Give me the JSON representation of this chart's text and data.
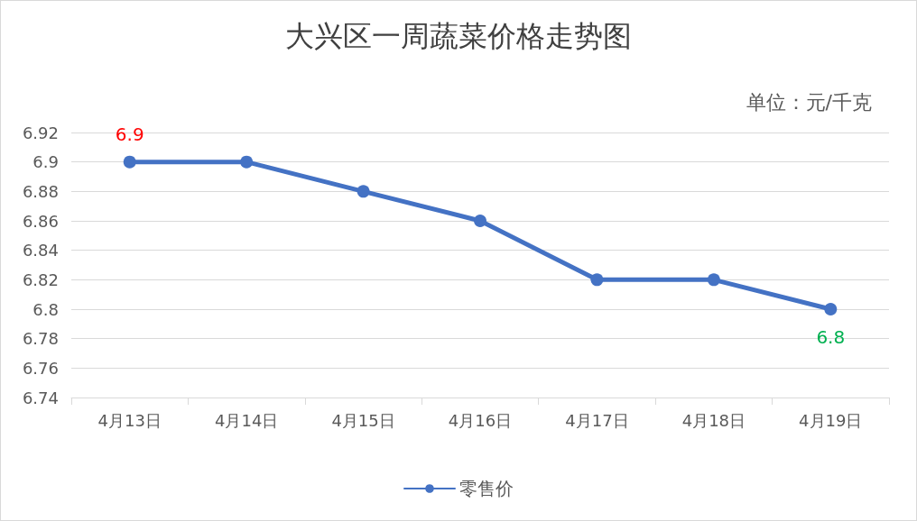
{
  "chart_data": {
    "type": "line",
    "title": "大兴区一周蔬菜价格走势图",
    "subtitle": "单位：元/千克",
    "categories": [
      "4月13日",
      "4月14日",
      "4月15日",
      "4月16日",
      "4月17日",
      "4月18日",
      "4月19日"
    ],
    "series": [
      {
        "name": "零售价",
        "color": "#4472c4",
        "values": [
          6.9,
          6.9,
          6.88,
          6.86,
          6.82,
          6.82,
          6.8
        ],
        "value_labels": [
          "6.9",
          null,
          null,
          null,
          null,
          null,
          "6.8"
        ]
      }
    ],
    "ylim": [
      6.74,
      6.92
    ],
    "yticks": [
      6.74,
      6.76,
      6.78,
      6.8,
      6.82,
      6.84,
      6.86,
      6.88,
      6.9,
      6.92
    ],
    "grid": "y",
    "legend": "bottom",
    "marker": "circle",
    "line_style": "solid"
  }
}
